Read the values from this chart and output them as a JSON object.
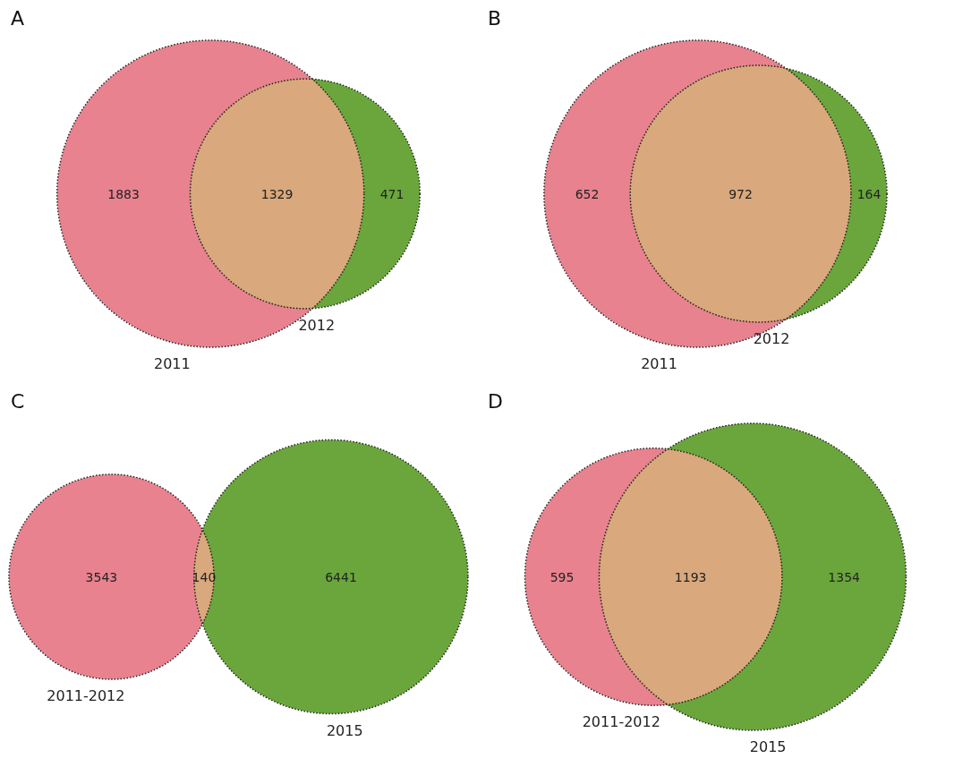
{
  "chart_data": [
    {
      "type": "other",
      "title": "A",
      "categories": [
        null,
        null,
        null
      ],
      "values": [
        1883,
        1329,
        471
      ],
      "colors": [
        "#e8828f",
        "#d9a87c",
        "#6aa63c"
      ],
      "annotations": [
        "2011",
        "2012"
      ],
      "data_labels": true
    },
    {
      "type": "other",
      "title": "B",
      "categories": [
        null,
        null,
        null
      ],
      "values": [
        652,
        972,
        164
      ],
      "colors": [
        "#e8828f",
        "#d9a87c",
        "#6aa63c"
      ],
      "annotations": [
        "2011",
        "2012"
      ],
      "data_labels": true
    },
    {
      "type": "other",
      "title": "C",
      "categories": [
        null,
        null,
        null
      ],
      "values": [
        3543,
        140,
        6441
      ],
      "colors": [
        "#e8828f",
        "#d9a87c",
        "#6aa63c"
      ],
      "annotations": [
        "2011-2012",
        "2015"
      ],
      "data_labels": true
    },
    {
      "type": "other",
      "title": "D",
      "categories": [
        null,
        null,
        null
      ],
      "values": [
        595,
        1193,
        1354
      ],
      "colors": [
        "#e8828f",
        "#d9a87c",
        "#6aa63c"
      ],
      "annotations": [
        "2011-2012",
        "2015"
      ],
      "data_labels": true
    }
  ]
}
